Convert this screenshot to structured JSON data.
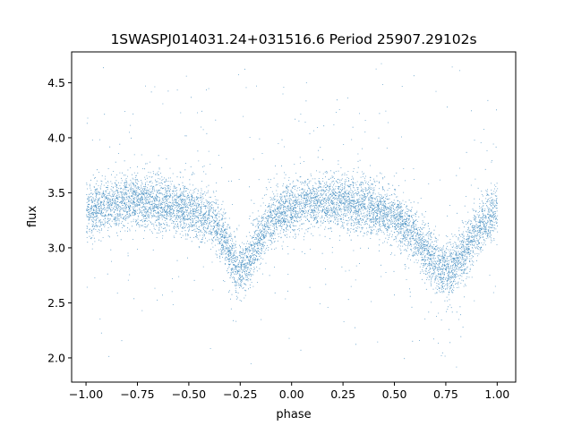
{
  "chart_data": {
    "type": "scatter",
    "title": "1SWASPJ014031.24+031516.6 Period 25907.29102s",
    "xlabel": "phase",
    "ylabel": "flux",
    "xlim": [
      -1.07,
      1.09
    ],
    "ylim": [
      1.78,
      4.78
    ],
    "xticks": [
      -1.0,
      -0.75,
      -0.5,
      -0.25,
      0.0,
      0.25,
      0.5,
      0.75,
      1.0
    ],
    "xtick_labels": [
      "−1.00",
      "−0.75",
      "−0.50",
      "−0.25",
      "0.00",
      "0.25",
      "0.50",
      "0.75",
      "1.00"
    ],
    "yticks": [
      2.0,
      2.5,
      3.0,
      3.5,
      4.0,
      4.5
    ],
    "ytick_labels": [
      "2.0",
      "2.5",
      "3.0",
      "3.5",
      "4.0",
      "4.5"
    ],
    "grid": false,
    "legend": "none",
    "marker_color": "#1f77b4",
    "series": [
      {
        "phase": [
          -1.0,
          -0.95,
          -0.9,
          -0.85,
          -0.8,
          -0.75,
          -0.7,
          -0.65,
          -0.6,
          -0.55,
          -0.5,
          -0.45,
          -0.4,
          -0.35,
          -0.3,
          -0.27,
          -0.25,
          -0.23,
          -0.2,
          -0.15,
          -0.1,
          -0.05,
          0.0,
          0.05,
          0.1,
          0.15,
          0.2,
          0.25,
          0.3,
          0.35,
          0.4,
          0.45,
          0.5,
          0.55,
          0.6,
          0.65,
          0.7,
          0.73,
          0.75,
          0.77,
          0.8,
          0.85,
          0.9,
          0.95,
          1.0
        ],
        "flux_mean": [
          3.36,
          3.37,
          3.39,
          3.41,
          3.42,
          3.43,
          3.42,
          3.41,
          3.4,
          3.38,
          3.35,
          3.32,
          3.27,
          3.15,
          2.95,
          2.82,
          2.8,
          2.82,
          2.93,
          3.12,
          3.25,
          3.33,
          3.37,
          3.39,
          3.41,
          3.42,
          3.43,
          3.42,
          3.41,
          3.39,
          3.36,
          3.33,
          3.28,
          3.2,
          3.1,
          2.98,
          2.85,
          2.79,
          2.78,
          2.79,
          2.86,
          3.0,
          3.15,
          3.26,
          3.34
        ],
        "scatter_std": 0.12,
        "outlier_range": [
          1.9,
          4.7
        ]
      }
    ]
  }
}
